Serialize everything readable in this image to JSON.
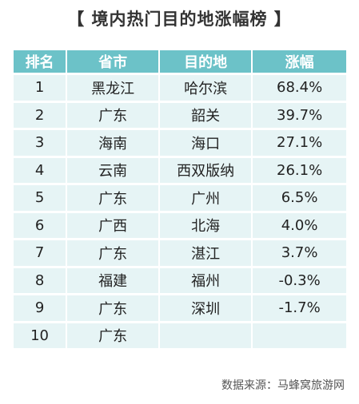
{
  "title": "【 境内热门目的地涨幅榜 】",
  "columns": [
    "排名",
    "省市",
    "目的地",
    "涨幅"
  ],
  "rows": [
    {
      "rank": "1",
      "province": "黑龙江",
      "destination": "哈尔滨",
      "increase": "68.4%"
    },
    {
      "rank": "2",
      "province": "广东",
      "destination": "韶关",
      "increase": "39.7%"
    },
    {
      "rank": "3",
      "province": "海南",
      "destination": "海口",
      "increase": "27.1%"
    },
    {
      "rank": "4",
      "province": "云南",
      "destination": "西双版纳",
      "increase": "26.1%"
    },
    {
      "rank": "5",
      "province": "广东",
      "destination": "广州",
      "increase": "6.5%"
    },
    {
      "rank": "6",
      "province": "广西",
      "destination": "北海",
      "increase": "4.0%"
    },
    {
      "rank": "7",
      "province": "广东",
      "destination": "湛江",
      "increase": "3.7%"
    },
    {
      "rank": "8",
      "province": "福建",
      "destination": "福州",
      "increase": "-0.3%"
    },
    {
      "rank": "9",
      "province": "广东",
      "destination": "深圳",
      "increase": "-1.7%"
    },
    {
      "rank": "10",
      "province": "广东",
      "destination": "",
      "increase": ""
    }
  ],
  "source": "数据来源：马蜂窝旅游网",
  "colors": {
    "header": "#6cc2c8",
    "row": "#e6f4f5"
  }
}
